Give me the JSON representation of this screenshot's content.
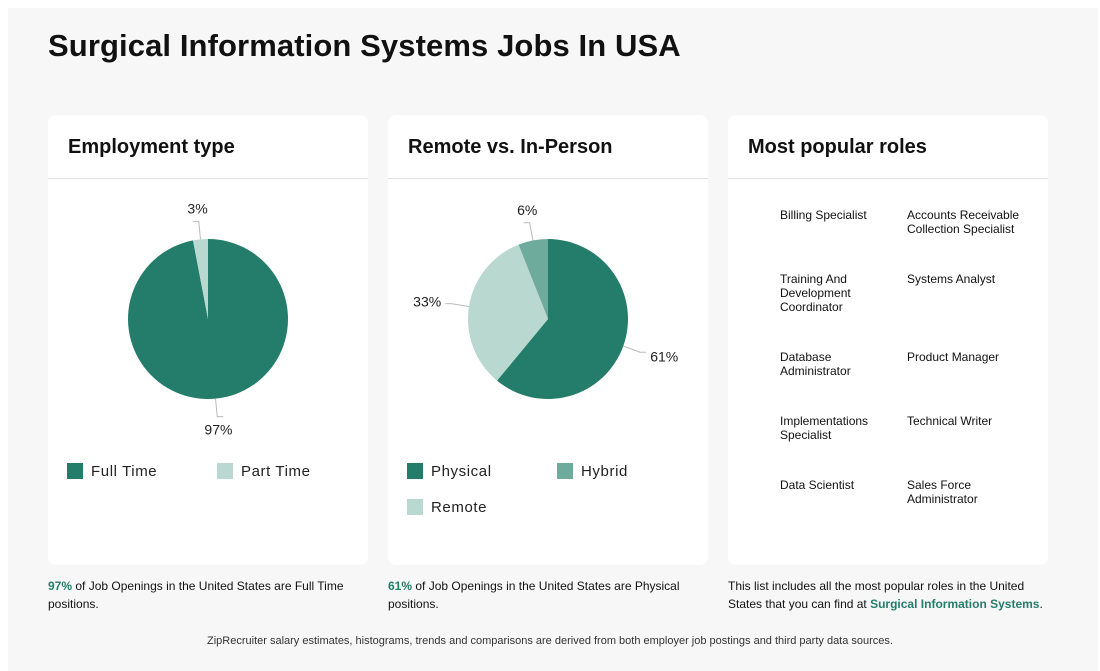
{
  "page": {
    "title": "Surgical Information Systems Jobs In USA",
    "footer": "ZipRecruiter salary estimates, histograms, trends and comparisons are derived from both employer job postings and third party data sources."
  },
  "colors": {
    "physical": "#247d6a",
    "hybrid": "#6fab9c",
    "remote": "#b9d8cf",
    "part_time": "#b9d8cf",
    "full_time": "#247d6a",
    "accent_text": "#247d6a"
  },
  "employment_card": {
    "title": "Employment type",
    "caption_pct": "97%",
    "caption_text": " of Job Openings in the United States are Full Time positions."
  },
  "remote_card": {
    "title": "Remote vs. In-Person",
    "caption_pct": "61%",
    "caption_text": " of Job Openings in the United States are Physical positions."
  },
  "roles_card": {
    "title": "Most popular roles",
    "roles": [
      "Billing Specialist",
      "Accounts Receivable Collection Specialist",
      "Training And Development Coordinator",
      "Systems Analyst",
      "Database Administrator",
      "Product Manager",
      "Implementations Specialist",
      "Technical Writer",
      "Data Scientist",
      "Sales Force Administrator"
    ],
    "caption_before": "This list includes all the most popular roles in the United States that you can find at ",
    "caption_link": "Surgical Information Systems",
    "caption_after": "."
  },
  "chart_data": [
    {
      "type": "pie",
      "title": "Employment type",
      "legend_position": "bottom",
      "slices": [
        {
          "name": "Full Time",
          "value": 97,
          "label": "97%",
          "color": "#247d6a"
        },
        {
          "name": "Part Time",
          "value": 3,
          "label": "3%",
          "color": "#b9d8cf"
        }
      ]
    },
    {
      "type": "pie",
      "title": "Remote vs. In-Person",
      "legend_position": "bottom",
      "slices": [
        {
          "name": "Physical",
          "value": 61,
          "label": "61%",
          "color": "#247d6a"
        },
        {
          "name": "Remote",
          "value": 33,
          "label": "33%",
          "color": "#b9d8cf"
        },
        {
          "name": "Hybrid",
          "value": 6,
          "label": "6%",
          "color": "#6fab9c"
        }
      ],
      "legend_order": [
        "Physical",
        "Hybrid",
        "Remote"
      ]
    }
  ]
}
